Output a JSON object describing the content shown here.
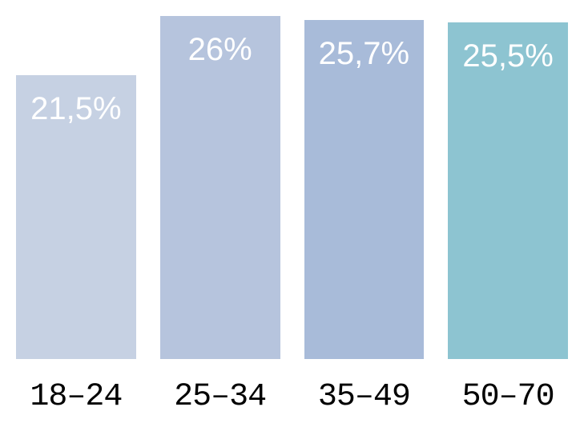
{
  "chart": {
    "type": "bar",
    "categories": [
      "18–24",
      "25–34",
      "35–49",
      "50–70"
    ],
    "values": [
      21.5,
      26,
      25.7,
      25.5
    ],
    "value_labels": [
      "21,5%",
      "26%",
      "25,7%",
      "25,5%"
    ],
    "bar_colors": [
      "#c6d1e3",
      "#b6c4dd",
      "#a8bbd9",
      "#8dc4d1"
    ],
    "background_color": "#ffffff",
    "bar_value_text_color": "#ffffff",
    "bar_value_fontsize": 40,
    "x_label_color": "#000000",
    "x_label_fontsize": 40,
    "x_label_fontfamily": "Courier New, monospace",
    "ylim": [
      0,
      26
    ],
    "chart_area_height": 429,
    "bar_width_ratio": 0.85
  }
}
